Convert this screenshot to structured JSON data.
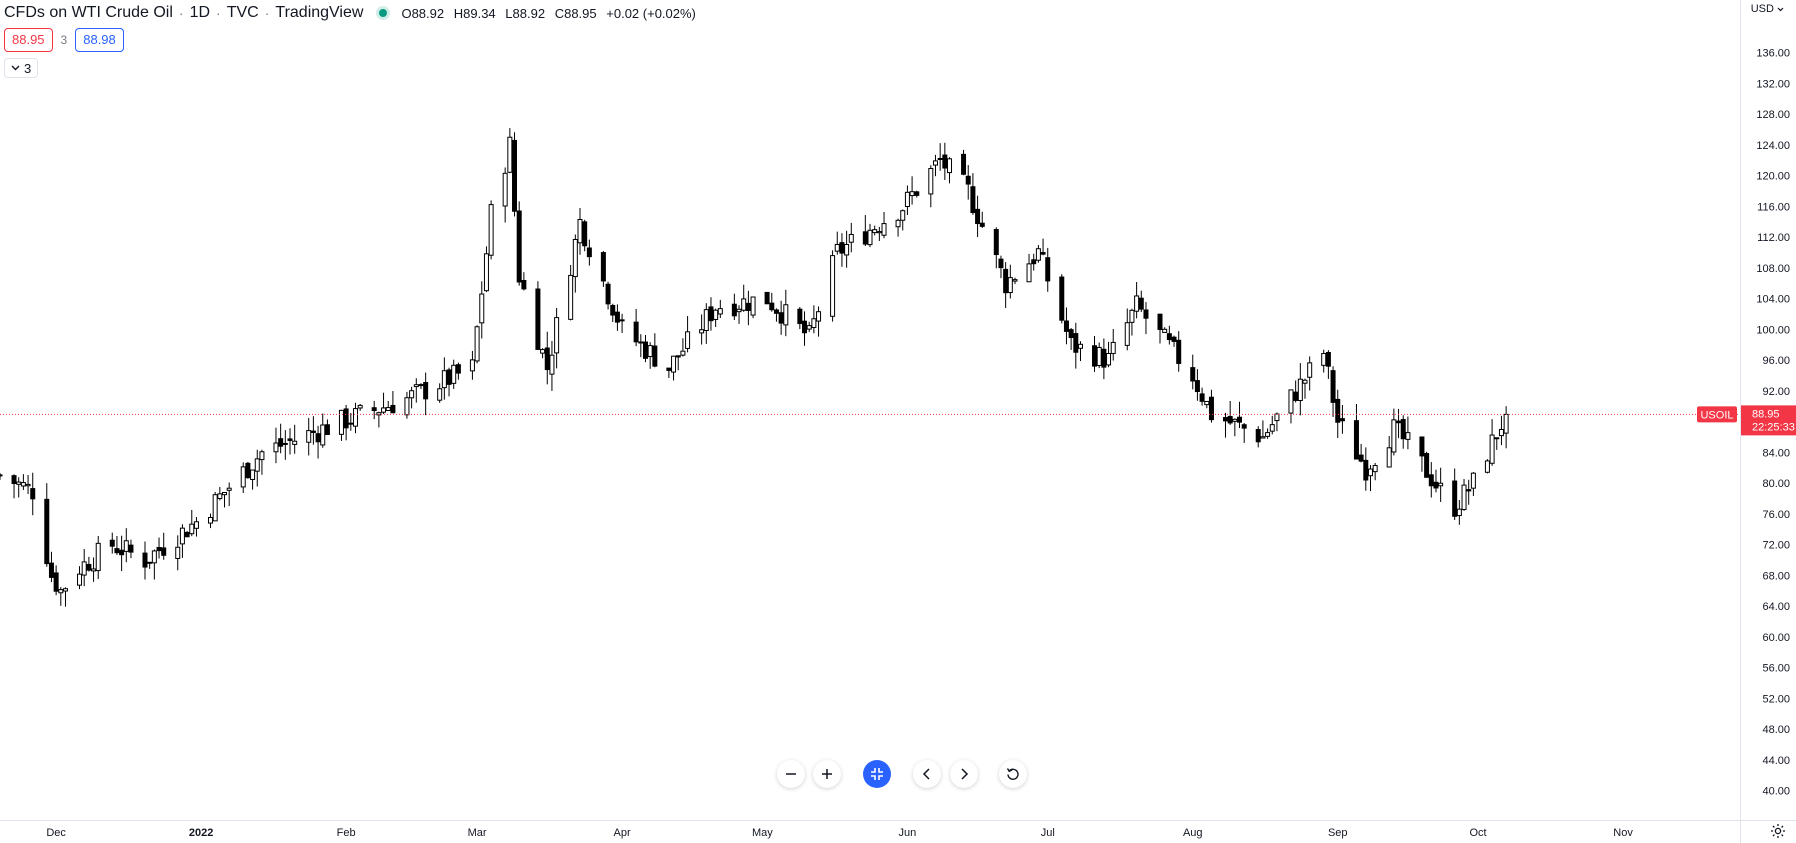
{
  "header": {
    "symbol": "CFDs on WTI Crude Oil",
    "interval": "1D",
    "exchange": "TVC",
    "source": "TradingView",
    "ohlc": {
      "o_label": "O",
      "o": "88.92",
      "h_label": "H",
      "h": "89.34",
      "l_label": "L",
      "l": "88.92",
      "c_label": "C",
      "c": "88.95",
      "change": "+0.02 (+0.02%)"
    }
  },
  "quote": {
    "bid": "88.95",
    "spread": "3",
    "ask": "88.98"
  },
  "indicators_toggle": {
    "count": "3"
  },
  "price_scale": {
    "currency": "USD"
  },
  "last_price": {
    "symbol_tag": "USOIL",
    "price": "88.95",
    "countdown": "22:25:33",
    "color": "#f23645"
  },
  "colors": {
    "up_body": "#ffffff",
    "down_body": "#000000",
    "wick": "#000000",
    "last_line": "#f23645",
    "accent": "#2962ff"
  },
  "icons": {
    "zoom_out": "minus-icon",
    "zoom_in": "plus-icon",
    "reset_scale": "collapse-arrows-icon",
    "scroll_left": "chevron-left-icon",
    "scroll_right": "chevron-right-icon",
    "reset": "rotate-icon",
    "settings": "gear-icon"
  },
  "chart_data": {
    "type": "candlestick",
    "title": "",
    "xlabel": "",
    "ylabel": "",
    "ylim": [
      38.0,
      140.0
    ],
    "y_ticks": [
      "136.00",
      "132.00",
      "128.00",
      "124.00",
      "120.00",
      "116.00",
      "112.00",
      "108.00",
      "104.00",
      "100.00",
      "96.00",
      "92.00",
      "84.00",
      "80.00",
      "76.00",
      "72.00",
      "68.00",
      "64.00",
      "60.00",
      "56.00",
      "52.00",
      "48.00",
      "44.00",
      "40.00"
    ],
    "x_ticks": [
      {
        "label": "Dec",
        "date": "2021-12-01",
        "bold": false
      },
      {
        "label": "2022",
        "date": "2022-01-01",
        "bold": true
      },
      {
        "label": "Feb",
        "date": "2022-02-01",
        "bold": false
      },
      {
        "label": "Mar",
        "date": "2022-03-01",
        "bold": false
      },
      {
        "label": "Apr",
        "date": "2022-04-01",
        "bold": false
      },
      {
        "label": "May",
        "date": "2022-05-01",
        "bold": false
      },
      {
        "label": "Jun",
        "date": "2022-06-01",
        "bold": false
      },
      {
        "label": "Jul",
        "date": "2022-07-01",
        "bold": false
      },
      {
        "label": "Aug",
        "date": "2022-08-01",
        "bold": false
      },
      {
        "label": "Sep",
        "date": "2022-09-01",
        "bold": false
      },
      {
        "label": "Oct",
        "date": "2022-10-01",
        "bold": false
      },
      {
        "label": "Nov",
        "date": "2022-11-01",
        "bold": false
      }
    ],
    "x_range": [
      "2021-11-19",
      "2022-11-26"
    ],
    "last_price": 88.95,
    "grid": false,
    "approx_closes": [
      {
        "date": "2021-11-19",
        "close": 81.0
      },
      {
        "date": "2021-11-26",
        "close": 79.0
      },
      {
        "date": "2021-11-30",
        "close": 68.0
      },
      {
        "date": "2021-12-02",
        "close": 66.0
      },
      {
        "date": "2021-12-06",
        "close": 69.0
      },
      {
        "date": "2021-12-13",
        "close": 72.0
      },
      {
        "date": "2021-12-20",
        "close": 70.0
      },
      {
        "date": "2021-12-31",
        "close": 75.0
      },
      {
        "date": "2022-01-14",
        "close": 84.0
      },
      {
        "date": "2022-01-31",
        "close": 88.0
      },
      {
        "date": "2022-02-14",
        "close": 91.0
      },
      {
        "date": "2022-02-28",
        "close": 95.0
      },
      {
        "date": "2022-03-04",
        "close": 115.0
      },
      {
        "date": "2022-03-08",
        "close": 124.0
      },
      {
        "date": "2022-03-10",
        "close": 107.0
      },
      {
        "date": "2022-03-16",
        "close": 95.0
      },
      {
        "date": "2022-03-23",
        "close": 114.0
      },
      {
        "date": "2022-04-01",
        "close": 100.0
      },
      {
        "date": "2022-04-11",
        "close": 95.0
      },
      {
        "date": "2022-04-21",
        "close": 103.0
      },
      {
        "date": "2022-05-02",
        "close": 104.0
      },
      {
        "date": "2022-05-11",
        "close": 99.0
      },
      {
        "date": "2022-05-17",
        "close": 110.0
      },
      {
        "date": "2022-05-31",
        "close": 116.0
      },
      {
        "date": "2022-06-08",
        "close": 122.0
      },
      {
        "date": "2022-06-14",
        "close": 118.0
      },
      {
        "date": "2022-06-22",
        "close": 106.0
      },
      {
        "date": "2022-06-29",
        "close": 110.0
      },
      {
        "date": "2022-07-06",
        "close": 98.0
      },
      {
        "date": "2022-07-14",
        "close": 96.0
      },
      {
        "date": "2022-07-20",
        "close": 103.0
      },
      {
        "date": "2022-08-01",
        "close": 94.0
      },
      {
        "date": "2022-08-05",
        "close": 89.0
      },
      {
        "date": "2022-08-16",
        "close": 86.0
      },
      {
        "date": "2022-08-29",
        "close": 97.0
      },
      {
        "date": "2022-09-01",
        "close": 88.0
      },
      {
        "date": "2022-09-07",
        "close": 82.0
      },
      {
        "date": "2022-09-13",
        "close": 87.0
      },
      {
        "date": "2022-09-16",
        "close": 85.0
      },
      {
        "date": "2022-09-23",
        "close": 79.0
      },
      {
        "date": "2022-09-26",
        "close": 77.0
      },
      {
        "date": "2022-09-30",
        "close": 80.0
      },
      {
        "date": "2022-10-03",
        "close": 84.0
      },
      {
        "date": "2022-10-07",
        "close": 88.95
      }
    ]
  }
}
